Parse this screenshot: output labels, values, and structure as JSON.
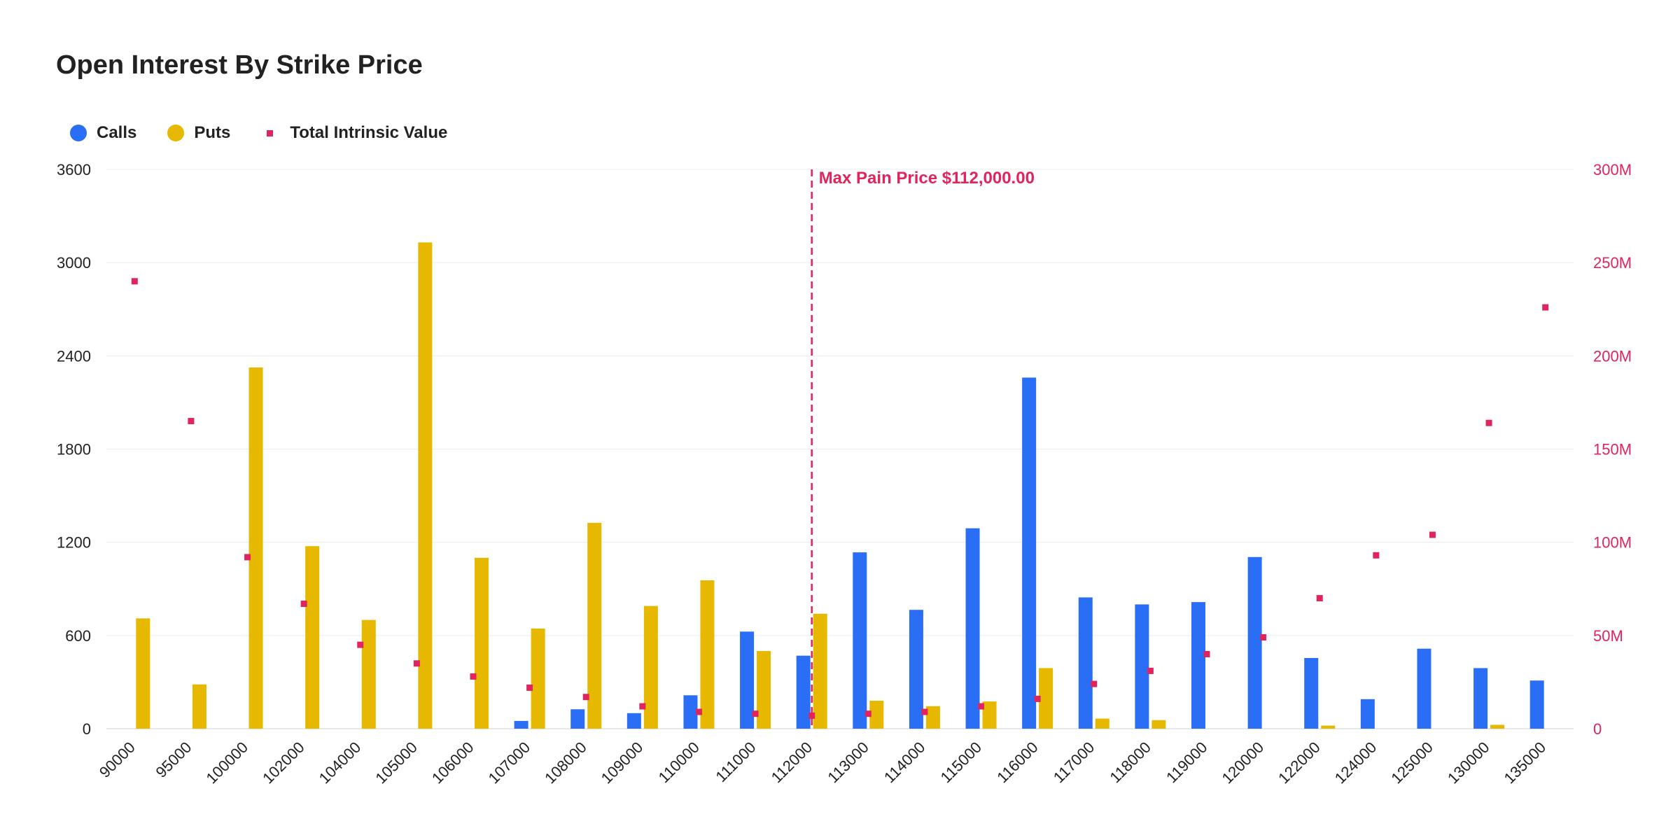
{
  "chart_data": {
    "type": "bar",
    "title": "Open Interest By Strike Price",
    "categories": [
      "90000",
      "95000",
      "100000",
      "102000",
      "104000",
      "105000",
      "106000",
      "107000",
      "108000",
      "109000",
      "110000",
      "111000",
      "112000",
      "113000",
      "114000",
      "115000",
      "116000",
      "117000",
      "118000",
      "119000",
      "120000",
      "122000",
      "124000",
      "125000",
      "130000",
      "135000"
    ],
    "series": [
      {
        "name": "Calls",
        "kind": "bar",
        "axis": "left",
        "color": "#2a6ef5",
        "values": [
          0,
          0,
          0,
          0,
          0,
          0,
          0,
          50,
          125,
          100,
          215,
          625,
          470,
          1135,
          765,
          1290,
          2260,
          845,
          800,
          815,
          1105,
          455,
          190,
          515,
          390,
          310
        ]
      },
      {
        "name": "Puts",
        "kind": "bar",
        "axis": "left",
        "color": "#e6b800",
        "values": [
          710,
          285,
          2325,
          1175,
          700,
          3130,
          1100,
          645,
          1325,
          790,
          955,
          500,
          740,
          180,
          145,
          175,
          390,
          65,
          55,
          0,
          0,
          20,
          0,
          0,
          25,
          0
        ]
      },
      {
        "name": "Total Intrinsic Value",
        "kind": "scatter",
        "axis": "right",
        "color": "#e0245e",
        "values": [
          240000000,
          165000000,
          92000000,
          67000000,
          45000000,
          35000000,
          28000000,
          22000000,
          17000000,
          12000000,
          9000000,
          8000000,
          7000000,
          8000000,
          9000000,
          12000000,
          16000000,
          24000000,
          31000000,
          40000000,
          49000000,
          70000000,
          93000000,
          104000000,
          164000000,
          226000000
        ]
      }
    ],
    "y_left": {
      "min": 0,
      "max": 3600,
      "ticks": [
        "0",
        "600",
        "1200",
        "1800",
        "2400",
        "3000",
        "3600"
      ]
    },
    "y_right": {
      "min": 0,
      "max": 300000000,
      "ticks": [
        "0",
        "50M",
        "100M",
        "150M",
        "200M",
        "250M",
        "300M"
      ]
    },
    "legend": {
      "position": "top-left"
    },
    "grid": true,
    "annotation": {
      "category": "112000",
      "label": "Max Pain Price $112,000.00",
      "color": "#e0245e"
    }
  }
}
